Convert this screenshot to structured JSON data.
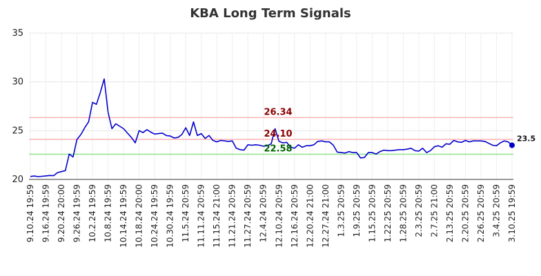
{
  "chart_data": {
    "type": "line",
    "title": "KBA Long Term Signals",
    "xlabel": "",
    "ylabel": "",
    "ylim": [
      20,
      35
    ],
    "y_ticks": [
      20,
      25,
      30,
      35
    ],
    "grid": true,
    "x_tick_labels": [
      "9.10.24 19:59",
      "9.16.24 19:59",
      "9.20.24 20:00",
      "9.26.24 19:59",
      "10.2.24 19:59",
      "10.8.24 19:59",
      "10.14.24 19:59",
      "10.18.24 20:00",
      "10.24.24 19:59",
      "10.30.24 19:59",
      "11.5.24 20:59",
      "11.11.24 20:59",
      "11.15.24 21:00",
      "11.21.24 20:59",
      "11.27.24 20:59",
      "12.4.24 20:59",
      "12.10.24 20:59",
      "12.16.24 20:59",
      "12.20.24 21:00",
      "12.27.24 21:00",
      "1.3.25 20:59",
      "1.9.25 20:59",
      "1.15.25 20:59",
      "1.22.25 20:59",
      "1.28.25 20:59",
      "2.3.25 20:59",
      "2.7.25 21:00",
      "2.13.25 20:59",
      "2.20.25 20:59",
      "2.26.25 20:59",
      "3.4.25 20:59",
      "3.10.25 19:59"
    ],
    "series": [
      {
        "color": "#0000cc",
        "values": [
          20.3,
          20.35,
          20.28,
          20.32,
          20.36,
          20.4,
          20.38,
          20.7,
          20.8,
          20.9,
          22.6,
          22.3,
          24.1,
          24.6,
          25.3,
          25.9,
          27.9,
          27.7,
          28.9,
          30.3,
          26.9,
          25.2,
          25.7,
          25.45,
          25.2,
          24.75,
          24.3,
          23.75,
          25.0,
          24.8,
          25.1,
          24.85,
          24.65,
          24.7,
          24.75,
          24.5,
          24.45,
          24.25,
          24.3,
          24.6,
          25.3,
          24.5,
          25.9,
          24.5,
          24.7,
          24.2,
          24.5,
          24.0,
          23.85,
          24.0,
          23.95,
          23.9,
          23.95,
          23.2,
          23.05,
          23.0,
          23.55,
          23.5,
          23.55,
          23.5,
          23.4,
          23.45,
          23.65,
          25.2,
          23.9,
          23.75,
          23.8,
          23.3,
          23.2,
          23.55,
          23.3,
          23.45,
          23.45,
          23.55,
          23.9,
          23.95,
          23.85,
          23.85,
          23.5,
          22.8,
          22.75,
          22.7,
          22.85,
          22.75,
          22.75,
          22.2,
          22.25,
          22.75,
          22.75,
          22.6,
          22.85,
          23.0,
          22.95,
          22.95,
          23.0,
          23.05,
          23.05,
          23.1,
          23.2,
          22.95,
          22.9,
          23.2,
          22.75,
          22.95,
          23.35,
          23.45,
          23.3,
          23.65,
          23.6,
          24.0,
          23.85,
          23.8,
          24.0,
          23.85,
          23.95,
          23.95,
          23.95,
          23.9,
          23.7,
          23.5,
          23.45,
          23.75,
          23.95,
          23.85,
          23.5
        ]
      }
    ],
    "last_value_label": "23.5",
    "horizontal_lines": [
      {
        "value": 26.34,
        "label": "26.34",
        "line_color": "#ffb3b3",
        "label_color": "#8b0000"
      },
      {
        "value": 24.1,
        "label": "24.10",
        "line_color": "#ffb3b3",
        "label_color": "#8b0000"
      },
      {
        "value": 22.58,
        "label": "22.58",
        "line_color": "#90e090",
        "label_color": "#006400"
      }
    ]
  }
}
